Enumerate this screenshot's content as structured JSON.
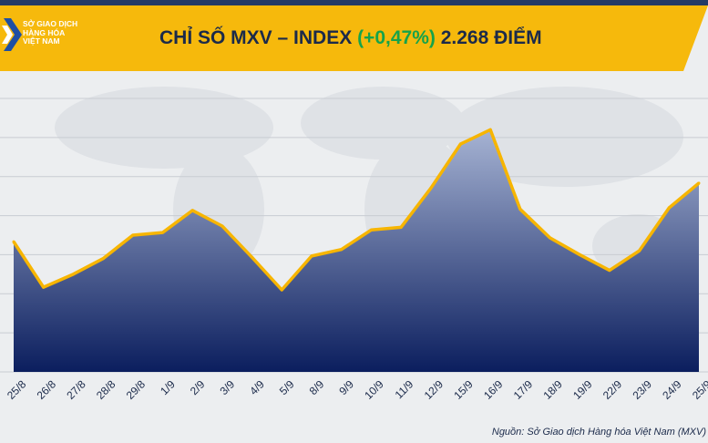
{
  "header": {
    "logo_lines": [
      "SỞ GIAO DỊCH",
      "HÀNG HÓA",
      "VIỆT NAM"
    ],
    "title_prefix": "CHỈ SỐ MXV – INDEX",
    "title_change": "(+0,47%)",
    "title_value": "2.268 ĐIỂM"
  },
  "colors": {
    "banner": "#f6b90c",
    "line": "#f7b500",
    "area_top": "#a6b3d3",
    "area_bottom": "#0b1e5e",
    "change_positive": "#16a34a"
  },
  "chart_data": {
    "type": "area",
    "title": "CHỈ SỐ MXV – INDEX (+0,47%) 2.268 ĐIỂM",
    "xlabel": "",
    "ylabel": "",
    "grid": true,
    "categories": [
      "25/8",
      "26/8",
      "27/8",
      "28/8",
      "29/8",
      "1/9",
      "2/9",
      "3/9",
      "4/9",
      "5/9",
      "8/9",
      "9/9",
      "10/9",
      "11/9",
      "12/9",
      "15/9",
      "16/9",
      "17/9",
      "18/9",
      "19/9",
      "22/9",
      "23/9",
      "24/9",
      "25/9"
    ],
    "values": [
      2210,
      2175,
      2185,
      2197,
      2215,
      2217,
      2234,
      2222,
      2198,
      2173,
      2199,
      2204,
      2219,
      2221,
      2251,
      2285,
      2296,
      2235,
      2213,
      2200,
      2188,
      2203,
      2236,
      2255
    ],
    "ylim": [
      2110,
      2320
    ]
  },
  "source": "Nguồn: Sở Giao dịch Hàng hóa Việt Nam (MXV)"
}
